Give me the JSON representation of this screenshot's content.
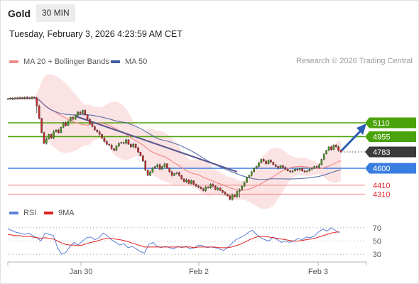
{
  "header": {
    "symbol": "Gold",
    "timeframe": "30 MIN"
  },
  "datetime": "Tuesday, February 3, 2026 4:23:59 AM CET",
  "legend": {
    "ma20_label": "MA 20 + Bollinger Bands",
    "ma50_label": "MA 50",
    "credit": "Research © 2026 Trading Central",
    "rsi_label": "RSI",
    "rsi_ma_label": "9MA"
  },
  "colors": {
    "ma20": "#f08a8a",
    "ma50": "#3e5a9e",
    "bollinger": "#fbdada",
    "resistance": "#4aa30a",
    "pivot": "#3a7de0",
    "support": "#f08080",
    "support_text": "#d9262d",
    "last_price": "#3a3a3a",
    "rsi": "#5b7fd8",
    "rsi_ma": "#e0201f",
    "trend": "#5a5890",
    "arrow": "#2a5db0",
    "candle_up": "#4a9a1c",
    "candle_down": "#c62828"
  },
  "chart_data": [
    {
      "type": "candlestick",
      "x_ticks": [
        "Jan 30",
        "Feb 2",
        "Feb 3"
      ],
      "levels": [
        {
          "value": 5110,
          "label": "5110",
          "kind": "resistance"
        },
        {
          "value": 4955,
          "label": "4955",
          "kind": "resistance"
        },
        {
          "value": 4783,
          "label": "4783",
          "kind": "last-price"
        },
        {
          "value": 4600,
          "label": "4600",
          "kind": "pivot"
        },
        {
          "value": 4410,
          "label": "4410",
          "kind": "support"
        },
        {
          "value": 4310,
          "label": "4310",
          "kind": "support"
        }
      ],
      "closes": [
        5380,
        5385,
        5378,
        5390,
        5386,
        5392,
        5384,
        5395,
        5390,
        5385,
        5398,
        5392,
        5300,
        5160,
        5000,
        4880,
        4930,
        4980,
        4940,
        5010,
        5030,
        5000,
        5060,
        5110,
        5080,
        5130,
        5170,
        5150,
        5195,
        5230,
        5215,
        5250,
        5200,
        5150,
        5100,
        5070,
        5030,
        5010,
        4980,
        4940,
        4900,
        4870,
        4860,
        4820,
        4800,
        4850,
        4880,
        4890,
        4880,
        4920,
        4870,
        4840,
        4870,
        4830,
        4780,
        4740,
        4680,
        4580,
        4520,
        4560,
        4600,
        4620,
        4640,
        4590,
        4620,
        4650,
        4600,
        4560,
        4520,
        4540,
        4550,
        4520,
        4480,
        4450,
        4470,
        4430,
        4460,
        4420,
        4400,
        4390,
        4370,
        4350,
        4390,
        4380,
        4420,
        4400,
        4360,
        4380,
        4350,
        4330,
        4310,
        4290,
        4250,
        4300,
        4280,
        4340,
        4360,
        4400,
        4440,
        4500,
        4520,
        4560,
        4600,
        4620,
        4660,
        4700,
        4680,
        4650,
        4690,
        4670,
        4640,
        4620,
        4600,
        4630,
        4610,
        4590,
        4570,
        4560,
        4570,
        4590,
        4580,
        4600,
        4570,
        4560,
        4570,
        4590,
        4600,
        4620,
        4610,
        4640,
        4700,
        4760,
        4800,
        4840,
        4810,
        4860,
        4840,
        4800,
        4783
      ]
    },
    {
      "type": "line",
      "name": "RSI",
      "ylim": [
        10,
        80
      ],
      "y_ticks": [
        70,
        50,
        30
      ],
      "series": [
        {
          "name": "RSI",
          "values": [
            68,
            66,
            63,
            62,
            60,
            62,
            58,
            55,
            50,
            62,
            60,
            58,
            40,
            30,
            33,
            42,
            48,
            44,
            50,
            55,
            56,
            52,
            55,
            62,
            58,
            52,
            48,
            44,
            46,
            40,
            42,
            38,
            34,
            32,
            45,
            48,
            42,
            40,
            42,
            40,
            38,
            42,
            40,
            42,
            38,
            40,
            44,
            43,
            40,
            41,
            40,
            38,
            36,
            40,
            46,
            52,
            55,
            58,
            63,
            66,
            60,
            55,
            52,
            50,
            56,
            52,
            48,
            50,
            48,
            50,
            54,
            52,
            56,
            55,
            58,
            64,
            68,
            65,
            70,
            66,
            62
          ]
        },
        {
          "name": "9MA",
          "values": [
            60,
            59,
            58,
            58,
            57,
            57,
            56,
            55,
            54,
            55,
            54,
            53,
            50,
            47,
            45,
            44,
            44,
            43,
            44,
            46,
            48,
            49,
            51,
            53,
            54,
            54,
            53,
            52,
            51,
            49,
            47,
            45,
            43,
            41,
            41,
            41,
            41,
            41,
            41,
            41,
            41,
            41,
            41,
            41,
            41,
            40,
            41,
            41,
            41,
            41,
            41,
            40,
            40,
            40,
            41,
            43,
            45,
            48,
            51,
            54,
            56,
            57,
            57,
            56,
            55,
            54,
            53,
            52,
            51,
            50,
            50,
            51,
            52,
            53,
            54,
            56,
            58,
            60,
            62,
            63,
            64
          ]
        }
      ]
    }
  ]
}
